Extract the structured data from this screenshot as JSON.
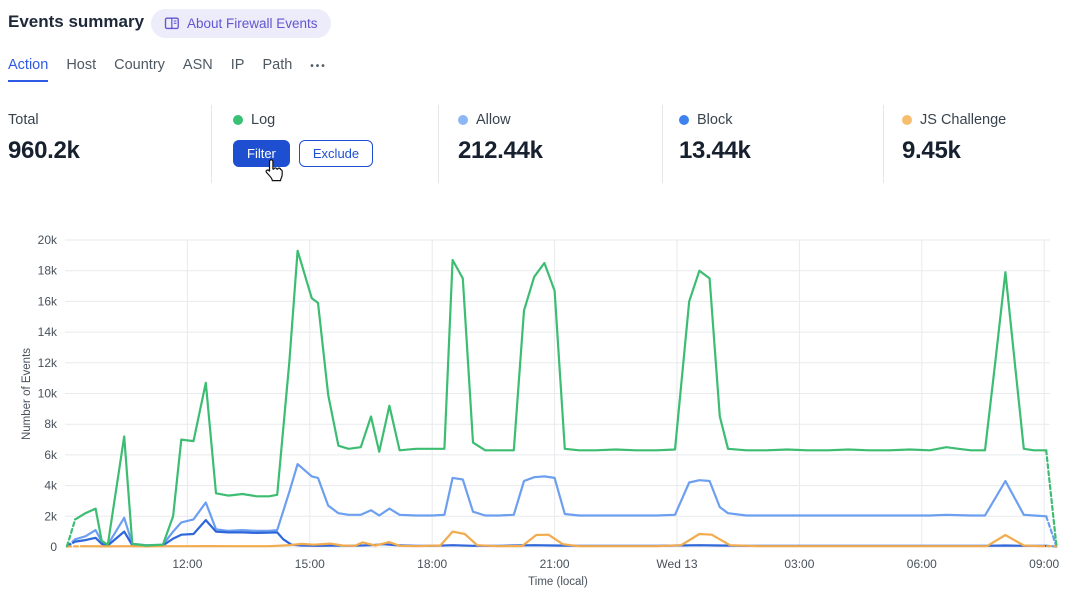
{
  "header": {
    "title": "Events summary",
    "about_badge": "About Firewall Events"
  },
  "tabs": {
    "items": [
      {
        "label": "Action",
        "active": true
      },
      {
        "label": "Host",
        "active": false
      },
      {
        "label": "Country",
        "active": false
      },
      {
        "label": "ASN",
        "active": false
      },
      {
        "label": "IP",
        "active": false
      },
      {
        "label": "Path",
        "active": false
      }
    ],
    "more_label": "•••"
  },
  "stats": {
    "total": {
      "label": "Total",
      "value": "960.2k"
    },
    "cards": [
      {
        "label": "Log",
        "dot_color": "#38c172",
        "value": "",
        "filter_label": "Filter",
        "exclude_label": "Exclude"
      },
      {
        "label": "Allow",
        "dot_color": "#8bb7f7",
        "value": "212.44k"
      },
      {
        "label": "Block",
        "dot_color": "#3e82f0",
        "value": "13.44k"
      },
      {
        "label": "JS Challenge",
        "dot_color": "#f7bd6d",
        "value": "9.45k"
      }
    ]
  },
  "colors": {
    "accent_blue": "#1e4fd1",
    "tab_active": "#2e5be6",
    "badge_bg": "#edecfa",
    "badge_text": "#6156d0",
    "gridline": "#e8eaed",
    "axis_text": "#48515c"
  },
  "chart_data": {
    "type": "line",
    "title": "",
    "xlabel": "Time (local)",
    "ylabel": "Number of Events",
    "x_unit": "hours since chart start (~09:00 Tue), 3h ticks",
    "xlim": [
      0,
      24.3
    ],
    "ylim_k": [
      0,
      20
    ],
    "grid": true,
    "legend_position": "stat-cards-above",
    "y_ticks": [
      {
        "v": 0,
        "label": "0"
      },
      {
        "v": 2,
        "label": "2k"
      },
      {
        "v": 4,
        "label": "4k"
      },
      {
        "v": 6,
        "label": "6k"
      },
      {
        "v": 8,
        "label": "8k"
      },
      {
        "v": 10,
        "label": "10k"
      },
      {
        "v": 12,
        "label": "12k"
      },
      {
        "v": 14,
        "label": "14k"
      },
      {
        "v": 16,
        "label": "16k"
      },
      {
        "v": 18,
        "label": "18k"
      },
      {
        "v": 20,
        "label": "20k"
      }
    ],
    "x_ticks": [
      {
        "t": 3,
        "label": "12:00"
      },
      {
        "t": 6,
        "label": "15:00"
      },
      {
        "t": 9,
        "label": "18:00"
      },
      {
        "t": 12,
        "label": "21:00"
      },
      {
        "t": 15,
        "label": "Wed 13"
      },
      {
        "t": 18,
        "label": "03:00"
      },
      {
        "t": 21,
        "label": "06:00"
      },
      {
        "t": 24,
        "label": "09:00"
      }
    ],
    "values_unit": "thousands of events",
    "series": [
      {
        "name": "Log",
        "color": "#3dbd72",
        "points": [
          [
            0.05,
            0.05
          ],
          [
            0.25,
            1.8
          ],
          [
            0.5,
            2.2
          ],
          [
            0.75,
            2.5
          ],
          [
            0.9,
            0.4
          ],
          [
            1.05,
            0.15
          ],
          [
            1.45,
            7.2
          ],
          [
            1.65,
            0.2
          ],
          [
            2.0,
            0.1
          ],
          [
            2.4,
            0.15
          ],
          [
            2.65,
            2.0
          ],
          [
            2.85,
            7.0
          ],
          [
            3.15,
            6.9
          ],
          [
            3.45,
            10.7
          ],
          [
            3.7,
            3.5
          ],
          [
            4.0,
            3.35
          ],
          [
            4.35,
            3.45
          ],
          [
            4.7,
            3.3
          ],
          [
            5.0,
            3.3
          ],
          [
            5.2,
            3.4
          ],
          [
            5.5,
            12.1
          ],
          [
            5.7,
            19.3
          ],
          [
            6.05,
            16.2
          ],
          [
            6.2,
            15.9
          ],
          [
            6.45,
            9.9
          ],
          [
            6.7,
            6.6
          ],
          [
            6.95,
            6.4
          ],
          [
            7.25,
            6.5
          ],
          [
            7.5,
            8.5
          ],
          [
            7.7,
            6.2
          ],
          [
            7.95,
            9.2
          ],
          [
            8.2,
            6.3
          ],
          [
            8.6,
            6.4
          ],
          [
            9.0,
            6.4
          ],
          [
            9.3,
            6.4
          ],
          [
            9.5,
            18.7
          ],
          [
            9.75,
            17.5
          ],
          [
            10.0,
            6.8
          ],
          [
            10.3,
            6.3
          ],
          [
            10.65,
            6.3
          ],
          [
            11.0,
            6.3
          ],
          [
            11.25,
            15.4
          ],
          [
            11.5,
            17.6
          ],
          [
            11.75,
            18.5
          ],
          [
            12.0,
            16.7
          ],
          [
            12.25,
            6.4
          ],
          [
            12.6,
            6.3
          ],
          [
            13.0,
            6.3
          ],
          [
            13.5,
            6.35
          ],
          [
            14.0,
            6.3
          ],
          [
            14.5,
            6.3
          ],
          [
            14.95,
            6.35
          ],
          [
            15.3,
            16.0
          ],
          [
            15.55,
            18.0
          ],
          [
            15.8,
            17.5
          ],
          [
            16.05,
            8.5
          ],
          [
            16.25,
            6.4
          ],
          [
            16.7,
            6.3
          ],
          [
            17.2,
            6.3
          ],
          [
            17.7,
            6.35
          ],
          [
            18.2,
            6.3
          ],
          [
            18.7,
            6.3
          ],
          [
            19.2,
            6.35
          ],
          [
            19.7,
            6.3
          ],
          [
            20.2,
            6.3
          ],
          [
            20.7,
            6.35
          ],
          [
            21.2,
            6.3
          ],
          [
            21.6,
            6.5
          ],
          [
            21.9,
            6.4
          ],
          [
            22.2,
            6.3
          ],
          [
            22.55,
            6.3
          ],
          [
            22.8,
            12.0
          ],
          [
            23.05,
            17.9
          ],
          [
            23.3,
            11.5
          ],
          [
            23.5,
            6.4
          ],
          [
            23.75,
            6.3
          ],
          [
            24.05,
            6.3
          ],
          [
            24.3,
            0.1
          ]
        ]
      },
      {
        "name": "Allow",
        "color": "#6d9ff0",
        "points": [
          [
            0.05,
            0.05
          ],
          [
            0.25,
            0.5
          ],
          [
            0.5,
            0.7
          ],
          [
            0.75,
            1.1
          ],
          [
            0.9,
            0.35
          ],
          [
            1.05,
            0.15
          ],
          [
            1.45,
            1.9
          ],
          [
            1.65,
            0.2
          ],
          [
            2.0,
            0.12
          ],
          [
            2.4,
            0.15
          ],
          [
            2.65,
            1.0
          ],
          [
            2.85,
            1.6
          ],
          [
            3.15,
            1.8
          ],
          [
            3.45,
            2.9
          ],
          [
            3.7,
            1.15
          ],
          [
            4.0,
            1.05
          ],
          [
            4.35,
            1.1
          ],
          [
            4.7,
            1.05
          ],
          [
            5.0,
            1.05
          ],
          [
            5.2,
            1.1
          ],
          [
            5.5,
            3.6
          ],
          [
            5.7,
            5.4
          ],
          [
            6.05,
            4.6
          ],
          [
            6.2,
            4.5
          ],
          [
            6.45,
            2.7
          ],
          [
            6.7,
            2.2
          ],
          [
            6.95,
            2.1
          ],
          [
            7.25,
            2.1
          ],
          [
            7.5,
            2.4
          ],
          [
            7.7,
            2.05
          ],
          [
            7.95,
            2.5
          ],
          [
            8.2,
            2.1
          ],
          [
            8.6,
            2.05
          ],
          [
            9.0,
            2.05
          ],
          [
            9.3,
            2.1
          ],
          [
            9.5,
            4.5
          ],
          [
            9.75,
            4.4
          ],
          [
            10.0,
            2.3
          ],
          [
            10.3,
            2.05
          ],
          [
            10.65,
            2.05
          ],
          [
            11.0,
            2.1
          ],
          [
            11.25,
            4.3
          ],
          [
            11.5,
            4.55
          ],
          [
            11.75,
            4.6
          ],
          [
            12.0,
            4.5
          ],
          [
            12.25,
            2.15
          ],
          [
            12.6,
            2.05
          ],
          [
            13.0,
            2.05
          ],
          [
            13.5,
            2.05
          ],
          [
            14.0,
            2.05
          ],
          [
            14.5,
            2.05
          ],
          [
            14.95,
            2.1
          ],
          [
            15.3,
            4.2
          ],
          [
            15.55,
            4.35
          ],
          [
            15.8,
            4.3
          ],
          [
            16.05,
            2.6
          ],
          [
            16.25,
            2.2
          ],
          [
            16.7,
            2.05
          ],
          [
            17.2,
            2.05
          ],
          [
            17.7,
            2.05
          ],
          [
            18.2,
            2.05
          ],
          [
            18.7,
            2.05
          ],
          [
            19.2,
            2.05
          ],
          [
            19.7,
            2.05
          ],
          [
            20.2,
            2.05
          ],
          [
            20.7,
            2.05
          ],
          [
            21.2,
            2.05
          ],
          [
            21.6,
            2.1
          ],
          [
            22.2,
            2.05
          ],
          [
            22.55,
            2.05
          ],
          [
            23.05,
            4.3
          ],
          [
            23.5,
            2.1
          ],
          [
            23.75,
            2.05
          ],
          [
            24.05,
            2.0
          ],
          [
            24.3,
            0.05
          ]
        ]
      },
      {
        "name": "Block",
        "color": "#2f66da",
        "points": [
          [
            0.05,
            0.05
          ],
          [
            0.25,
            0.35
          ],
          [
            0.5,
            0.45
          ],
          [
            0.75,
            0.6
          ],
          [
            0.9,
            0.2
          ],
          [
            1.05,
            0.1
          ],
          [
            1.45,
            1.0
          ],
          [
            1.65,
            0.12
          ],
          [
            2.0,
            0.08
          ],
          [
            2.4,
            0.1
          ],
          [
            2.65,
            0.55
          ],
          [
            2.85,
            0.8
          ],
          [
            3.15,
            0.85
          ],
          [
            3.45,
            1.75
          ],
          [
            3.7,
            1.0
          ],
          [
            4.0,
            0.95
          ],
          [
            4.35,
            0.95
          ],
          [
            4.7,
            0.92
          ],
          [
            5.0,
            0.93
          ],
          [
            5.2,
            0.95
          ],
          [
            5.35,
            0.5
          ],
          [
            5.55,
            0.15
          ],
          [
            5.8,
            0.1
          ],
          [
            6.2,
            0.08
          ],
          [
            6.6,
            0.1
          ],
          [
            7.0,
            0.08
          ],
          [
            7.5,
            0.12
          ],
          [
            7.8,
            0.18
          ],
          [
            8.1,
            0.12
          ],
          [
            8.6,
            0.08
          ],
          [
            9.0,
            0.08
          ],
          [
            9.5,
            0.12
          ],
          [
            10.0,
            0.08
          ],
          [
            10.65,
            0.08
          ],
          [
            11.0,
            0.1
          ],
          [
            11.5,
            0.12
          ],
          [
            12.0,
            0.1
          ],
          [
            12.6,
            0.08
          ],
          [
            13.5,
            0.08
          ],
          [
            14.5,
            0.08
          ],
          [
            15.0,
            0.1
          ],
          [
            15.55,
            0.12
          ],
          [
            16.05,
            0.1
          ],
          [
            16.7,
            0.08
          ],
          [
            17.7,
            0.08
          ],
          [
            18.7,
            0.08
          ],
          [
            19.7,
            0.08
          ],
          [
            20.7,
            0.08
          ],
          [
            21.6,
            0.08
          ],
          [
            22.55,
            0.08
          ],
          [
            23.05,
            0.1
          ],
          [
            23.5,
            0.08
          ],
          [
            24.05,
            0.08
          ],
          [
            24.3,
            0.03
          ]
        ]
      },
      {
        "name": "JS Challenge",
        "color": "#f2ab4e",
        "points": [
          [
            0.05,
            0.03
          ],
          [
            0.5,
            0.05
          ],
          [
            1.0,
            0.04
          ],
          [
            1.5,
            0.05
          ],
          [
            2.0,
            0.04
          ],
          [
            2.5,
            0.05
          ],
          [
            3.0,
            0.05
          ],
          [
            3.5,
            0.06
          ],
          [
            4.0,
            0.05
          ],
          [
            4.5,
            0.05
          ],
          [
            5.0,
            0.05
          ],
          [
            5.5,
            0.12
          ],
          [
            5.8,
            0.2
          ],
          [
            6.1,
            0.15
          ],
          [
            6.5,
            0.22
          ],
          [
            6.8,
            0.1
          ],
          [
            7.1,
            0.08
          ],
          [
            7.3,
            0.3
          ],
          [
            7.6,
            0.1
          ],
          [
            7.95,
            0.32
          ],
          [
            8.2,
            0.08
          ],
          [
            8.6,
            0.05
          ],
          [
            9.2,
            0.1
          ],
          [
            9.5,
            1.0
          ],
          [
            9.8,
            0.85
          ],
          [
            10.1,
            0.12
          ],
          [
            10.6,
            0.05
          ],
          [
            11.2,
            0.06
          ],
          [
            11.55,
            0.78
          ],
          [
            11.85,
            0.8
          ],
          [
            12.2,
            0.18
          ],
          [
            12.6,
            0.05
          ],
          [
            13.5,
            0.05
          ],
          [
            14.5,
            0.05
          ],
          [
            15.1,
            0.12
          ],
          [
            15.55,
            0.85
          ],
          [
            15.85,
            0.8
          ],
          [
            16.3,
            0.12
          ],
          [
            17.0,
            0.05
          ],
          [
            18.0,
            0.05
          ],
          [
            19.0,
            0.05
          ],
          [
            20.0,
            0.05
          ],
          [
            21.0,
            0.05
          ],
          [
            22.0,
            0.05
          ],
          [
            22.6,
            0.06
          ],
          [
            23.05,
            0.78
          ],
          [
            23.5,
            0.1
          ],
          [
            23.9,
            0.05
          ],
          [
            24.3,
            0.05
          ]
        ]
      }
    ],
    "style_notes": "first and last segments of each series drawn dashed (partial time buckets)"
  }
}
